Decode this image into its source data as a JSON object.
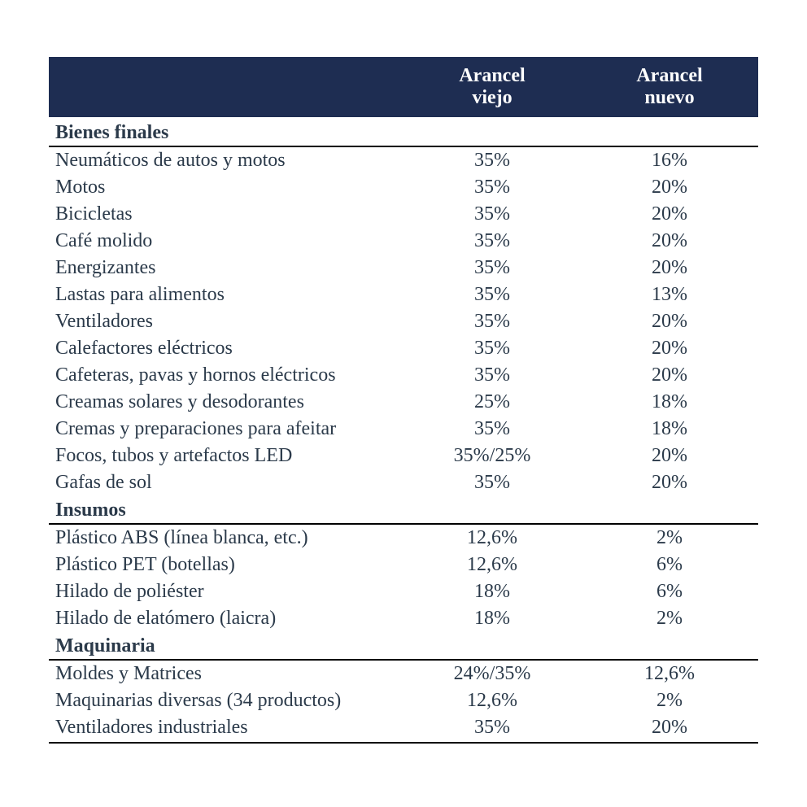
{
  "table": {
    "type": "table",
    "header_bg": "#1e2d52",
    "header_fg": "#ffffff",
    "body_fg": "#2b3a4a",
    "border_color": "#000000",
    "font_family": "Georgia, serif",
    "font_size": 24,
    "columns": {
      "col0": "",
      "col1": "Arancel viejo",
      "col2": "Arancel nuevo"
    },
    "sections": [
      {
        "title": "Bienes finales",
        "rows": [
          {
            "name": "Neumáticos de autos y motos",
            "old": "35%",
            "new": "16%"
          },
          {
            "name": "Motos",
            "old": "35%",
            "new": "20%"
          },
          {
            "name": "Bicicletas",
            "old": "35%",
            "new": "20%"
          },
          {
            "name": "Café molido",
            "old": "35%",
            "new": "20%"
          },
          {
            "name": "Energizantes",
            "old": "35%",
            "new": "20%"
          },
          {
            "name": "Lastas para alimentos",
            "old": "35%",
            "new": "13%"
          },
          {
            "name": "Ventiladores",
            "old": "35%",
            "new": "20%"
          },
          {
            "name": "Calefactores eléctricos",
            "old": "35%",
            "new": "20%"
          },
          {
            "name": "Cafeteras, pavas y hornos eléctricos",
            "old": "35%",
            "new": "20%"
          },
          {
            "name": "Creamas solares y desodorantes",
            "old": "25%",
            "new": "18%"
          },
          {
            "name": "Cremas y preparaciones para afeitar",
            "old": "35%",
            "new": "18%"
          },
          {
            "name": "Focos, tubos y artefactos LED",
            "old": "35%/25%",
            "new": "20%"
          },
          {
            "name": "Gafas de sol",
            "old": "35%",
            "new": "20%"
          }
        ]
      },
      {
        "title": "Insumos",
        "rows": [
          {
            "name": "Plástico ABS (línea blanca, etc.)",
            "old": "12,6%",
            "new": "2%"
          },
          {
            "name": "Plástico PET (botellas)",
            "old": "12,6%",
            "new": "6%"
          },
          {
            "name": "Hilado de poliéster",
            "old": "18%",
            "new": "6%"
          },
          {
            "name": "Hilado de elatómero (laicra)",
            "old": "18%",
            "new": "2%"
          }
        ]
      },
      {
        "title": "Maquinaria",
        "rows": [
          {
            "name": "Moldes y Matrices",
            "old": "24%/35%",
            "new": "12,6%"
          },
          {
            "name": "Maquinarias diversas (34 productos)",
            "old": "12,6%",
            "new": "2%"
          },
          {
            "name": "Ventiladores industriales",
            "old": "35%",
            "new": "20%"
          }
        ]
      }
    ]
  }
}
